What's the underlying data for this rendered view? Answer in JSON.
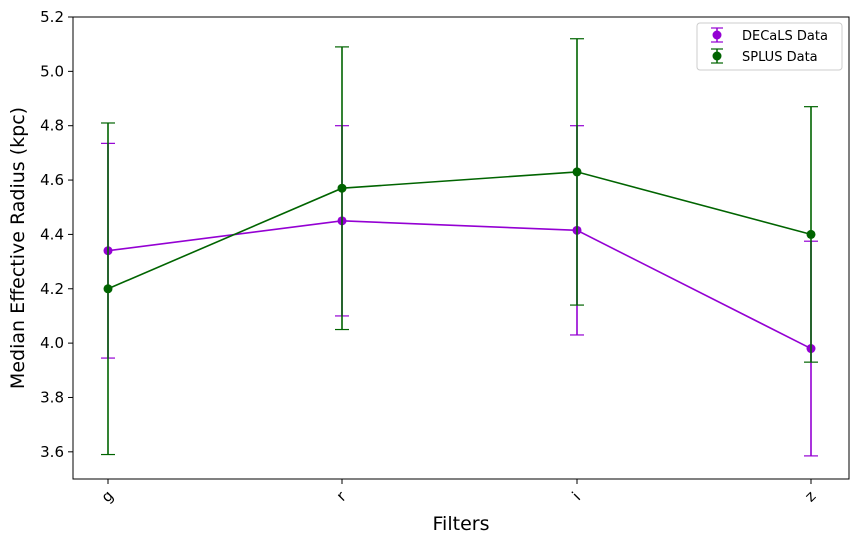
{
  "chart_data": {
    "type": "line",
    "title": "",
    "xlabel": "Filters",
    "ylabel": "Median Effective Radius (kpc)",
    "categories": [
      "g",
      "r",
      "i",
      "z"
    ],
    "ylim": [
      3.5,
      5.2
    ],
    "yticks": [
      "3.6",
      "3.8",
      "4.0",
      "4.2",
      "4.4",
      "4.6",
      "4.8",
      "5.0",
      "5.2"
    ],
    "legend_position": "top-right",
    "grid": false,
    "series": [
      {
        "name": "DECaLS Data",
        "color": "#9400d3",
        "values": [
          4.34,
          4.45,
          4.415,
          3.98
        ],
        "errors": [
          0.395,
          0.35,
          0.385,
          0.395
        ]
      },
      {
        "name": "SPLUS Data",
        "color": "#006400",
        "values": [
          4.2,
          4.57,
          4.63,
          4.4
        ],
        "errors": [
          0.61,
          0.52,
          0.49,
          0.47
        ]
      }
    ]
  }
}
